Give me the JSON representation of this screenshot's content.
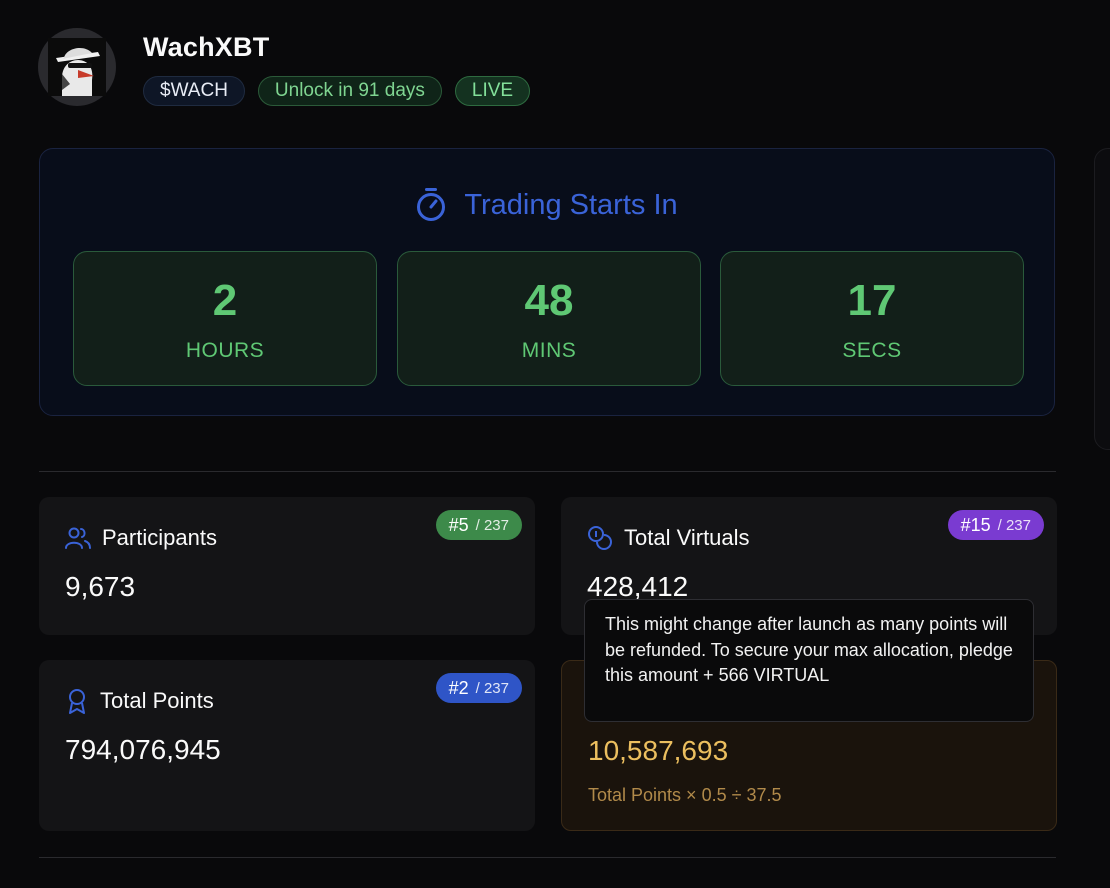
{
  "token": {
    "name": "WachXBT",
    "ticker": "$WACH",
    "unlock_label": "Unlock in 91 days",
    "status": "LIVE"
  },
  "countdown": {
    "title": "Trading Starts In",
    "units": [
      {
        "value": "2",
        "label": "HOURS"
      },
      {
        "value": "48",
        "label": "MINS"
      },
      {
        "value": "17",
        "label": "SECS"
      }
    ]
  },
  "stats": {
    "participants": {
      "label": "Participants",
      "value": "9,673",
      "rank": "#5",
      "rank_total": "/ 237"
    },
    "total_virtuals": {
      "label": "Total Virtuals",
      "value": "428,412",
      "rank": "#15",
      "rank_total": "/ 237"
    },
    "total_points": {
      "label": "Total Points",
      "value": "794,076,945",
      "rank": "#2",
      "rank_total": "/ 237"
    },
    "allocation": {
      "value": "10,587,693",
      "formula": "Total Points × 0.5 ÷ 37.5"
    }
  },
  "tooltip": {
    "text": "This might change after launch as many points will be refunded. To secure your max allocation, pledge this amount + 566 VIRTUAL"
  },
  "colors": {
    "accent_blue": "#3a63d8",
    "countdown_green": "#5fc874",
    "rank_green": "#3d8a4a",
    "rank_purple": "#7a3bd1",
    "rank_blue": "#2f55c7",
    "allocation_gold": "#ecbf5f"
  },
  "icons": {
    "countdown": "stopwatch-icon",
    "participants": "users-icon",
    "total_virtuals": "coins-icon",
    "total_points": "award-icon"
  }
}
